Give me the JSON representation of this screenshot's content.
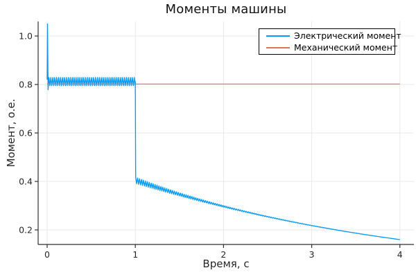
{
  "chart_data": {
    "type": "line",
    "title": "Моменты машины",
    "xlabel": "Время, с",
    "ylabel": "Момент, о.е.",
    "xlim": [
      -0.102,
      4.159
    ],
    "ylim": [
      0.14,
      1.06
    ],
    "x_ticks": [
      0,
      1,
      2,
      3,
      4
    ],
    "x_tick_labels": [
      "0",
      "1",
      "2",
      "3",
      "4"
    ],
    "y_ticks": [
      0.2,
      0.4,
      0.6,
      0.8,
      1.0
    ],
    "y_tick_labels": [
      "0.2",
      "0.4",
      "0.6",
      "0.8",
      "1.0"
    ],
    "grid": true,
    "legend_position": "top-right",
    "background_color": "#FFFFFF",
    "grid_color": "#E9E9E9",
    "axis_color": "#2F2F2F",
    "tick_label_color": "#262626",
    "series": [
      {
        "name": "Электрический момент",
        "color": "#009AFA",
        "description": "Start spike to ~1.05 at t≈0, then ~45 Hz ripple band around 0.81 until t=1 s, vertical step drop to ~0.41, then damped-ripple exponential decay to ~0.16 at t=4 s",
        "spike": [
          [
            0,
            0.82
          ],
          [
            0.004,
            1.05
          ],
          [
            0.011,
            0.778
          ]
        ],
        "osc_start": 0.02,
        "half_period": 0.011,
        "pre_level": 0.812,
        "pre_amp": 0.017,
        "drop_t": 1.0,
        "post_base": 0.0,
        "post_amp": 0.405,
        "post_tau": 3.23,
        "ripple_amp": 0.013,
        "ripple_tau": 0.75,
        "end_t": 4.0,
        "sample_values": {
          "t": [
            0.0,
            0.5,
            1.0,
            1.01,
            1.5,
            2.0,
            2.5,
            3.0,
            3.5,
            4.0
          ],
          "y": [
            1.05,
            0.81,
            0.81,
            0.41,
            0.347,
            0.297,
            0.255,
            0.218,
            0.187,
            0.16
          ]
        }
      },
      {
        "name": "Механический момент",
        "color": "#E3714B",
        "description": "Constant line at ~0.80 from t=0 to t=4 s",
        "points": [
          [
            0,
            0.802
          ],
          [
            4,
            0.802
          ]
        ]
      }
    ]
  }
}
